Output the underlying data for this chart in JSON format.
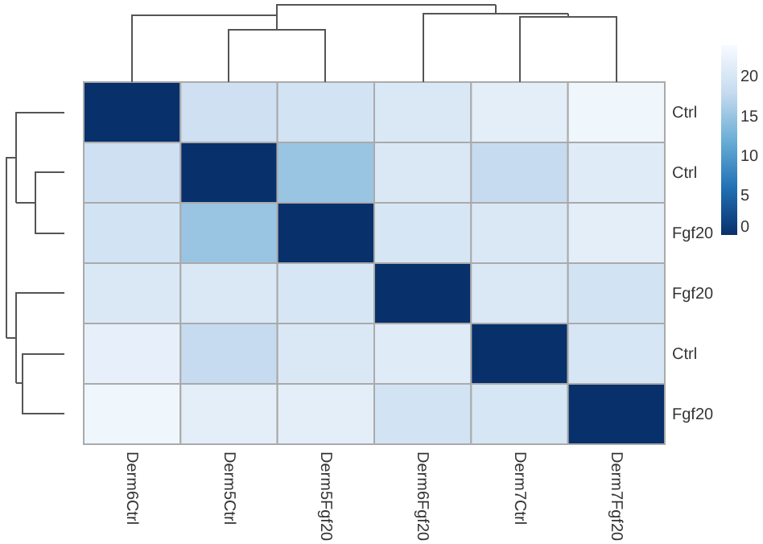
{
  "chart_data": {
    "type": "heatmap",
    "categories": [
      "Derm6Ctrl",
      "Derm5Ctrl",
      "Derm5Fgf20",
      "Derm6Fgf20",
      "Derm7Ctrl",
      "Derm7Fgf20"
    ],
    "y_categories": [
      "Ctrl",
      "Ctrl",
      "Fgf20",
      "Fgf20",
      "Ctrl",
      "Fgf20"
    ],
    "cells": [
      [
        0,
        19,
        19.5,
        20.5,
        21.5,
        23
      ],
      [
        19,
        0,
        15,
        20.5,
        18,
        21
      ],
      [
        19.5,
        15,
        0,
        20,
        20.5,
        21.5
      ],
      [
        20.5,
        20.5,
        20,
        0,
        20.5,
        19.5
      ],
      [
        22,
        18,
        20.5,
        21,
        0,
        20
      ],
      [
        23,
        21.5,
        21.5,
        19.5,
        20,
        0
      ]
    ],
    "clim": [
      0,
      24
    ],
    "cticks": [
      0,
      5,
      10,
      15,
      20
    ]
  }
}
